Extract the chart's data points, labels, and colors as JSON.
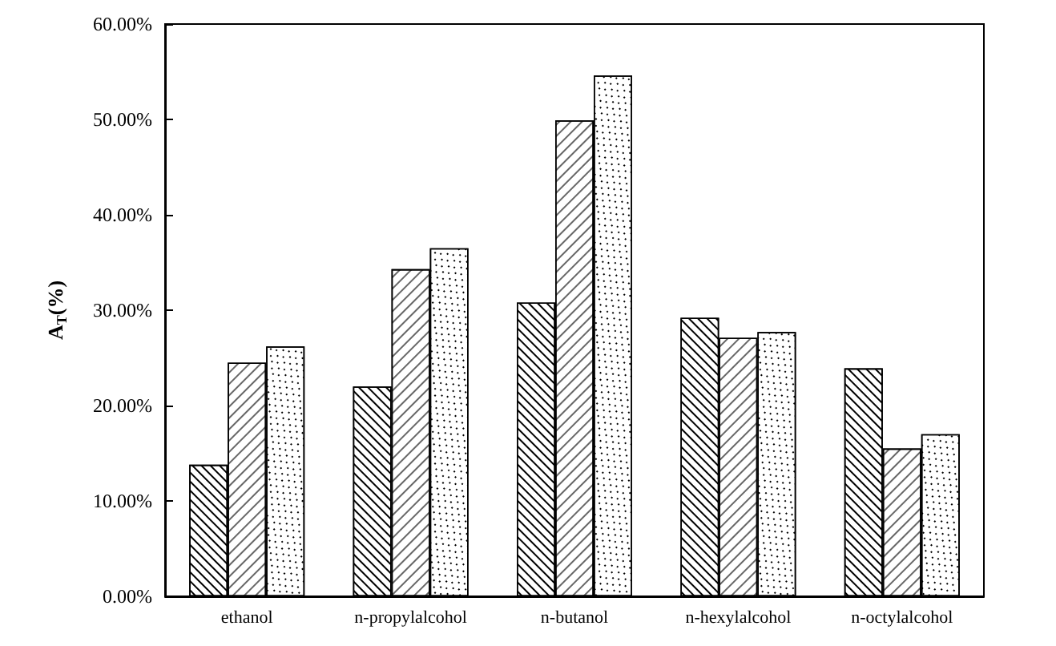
{
  "chart_data": {
    "type": "bar",
    "ylabel": "A$_{T}$(%)",
    "categories": [
      "ethanol",
      "n-propylalcohol",
      "n-butanol",
      "n-hexylalcohol",
      "n-octylalcohol"
    ],
    "series": [
      {
        "color": "#ffffff",
        "values": [
          13.8,
          22.0,
          30.8,
          29.2,
          23.9
        ]
      },
      {
        "color": "#ffffff",
        "values": [
          24.5,
          34.3,
          49.9,
          27.1,
          15.5
        ]
      },
      {
        "color": "#ffffff",
        "values": [
          26.2,
          36.5,
          54.6,
          27.7,
          17.0
        ]
      }
    ],
    "ylim": [
      0,
      60
    ],
    "yticks": [
      {
        "value": 0,
        "label": "0.00%"
      },
      {
        "value": 10,
        "label": "10.00%"
      },
      {
        "value": 20,
        "label": "20.00%"
      },
      {
        "value": 30,
        "label": "30.00%"
      },
      {
        "value": 40,
        "label": "40.00%"
      },
      {
        "value": 50,
        "label": "50.00%"
      },
      {
        "value": 60,
        "label": "60.00%"
      }
    ],
    "grid": false
  }
}
